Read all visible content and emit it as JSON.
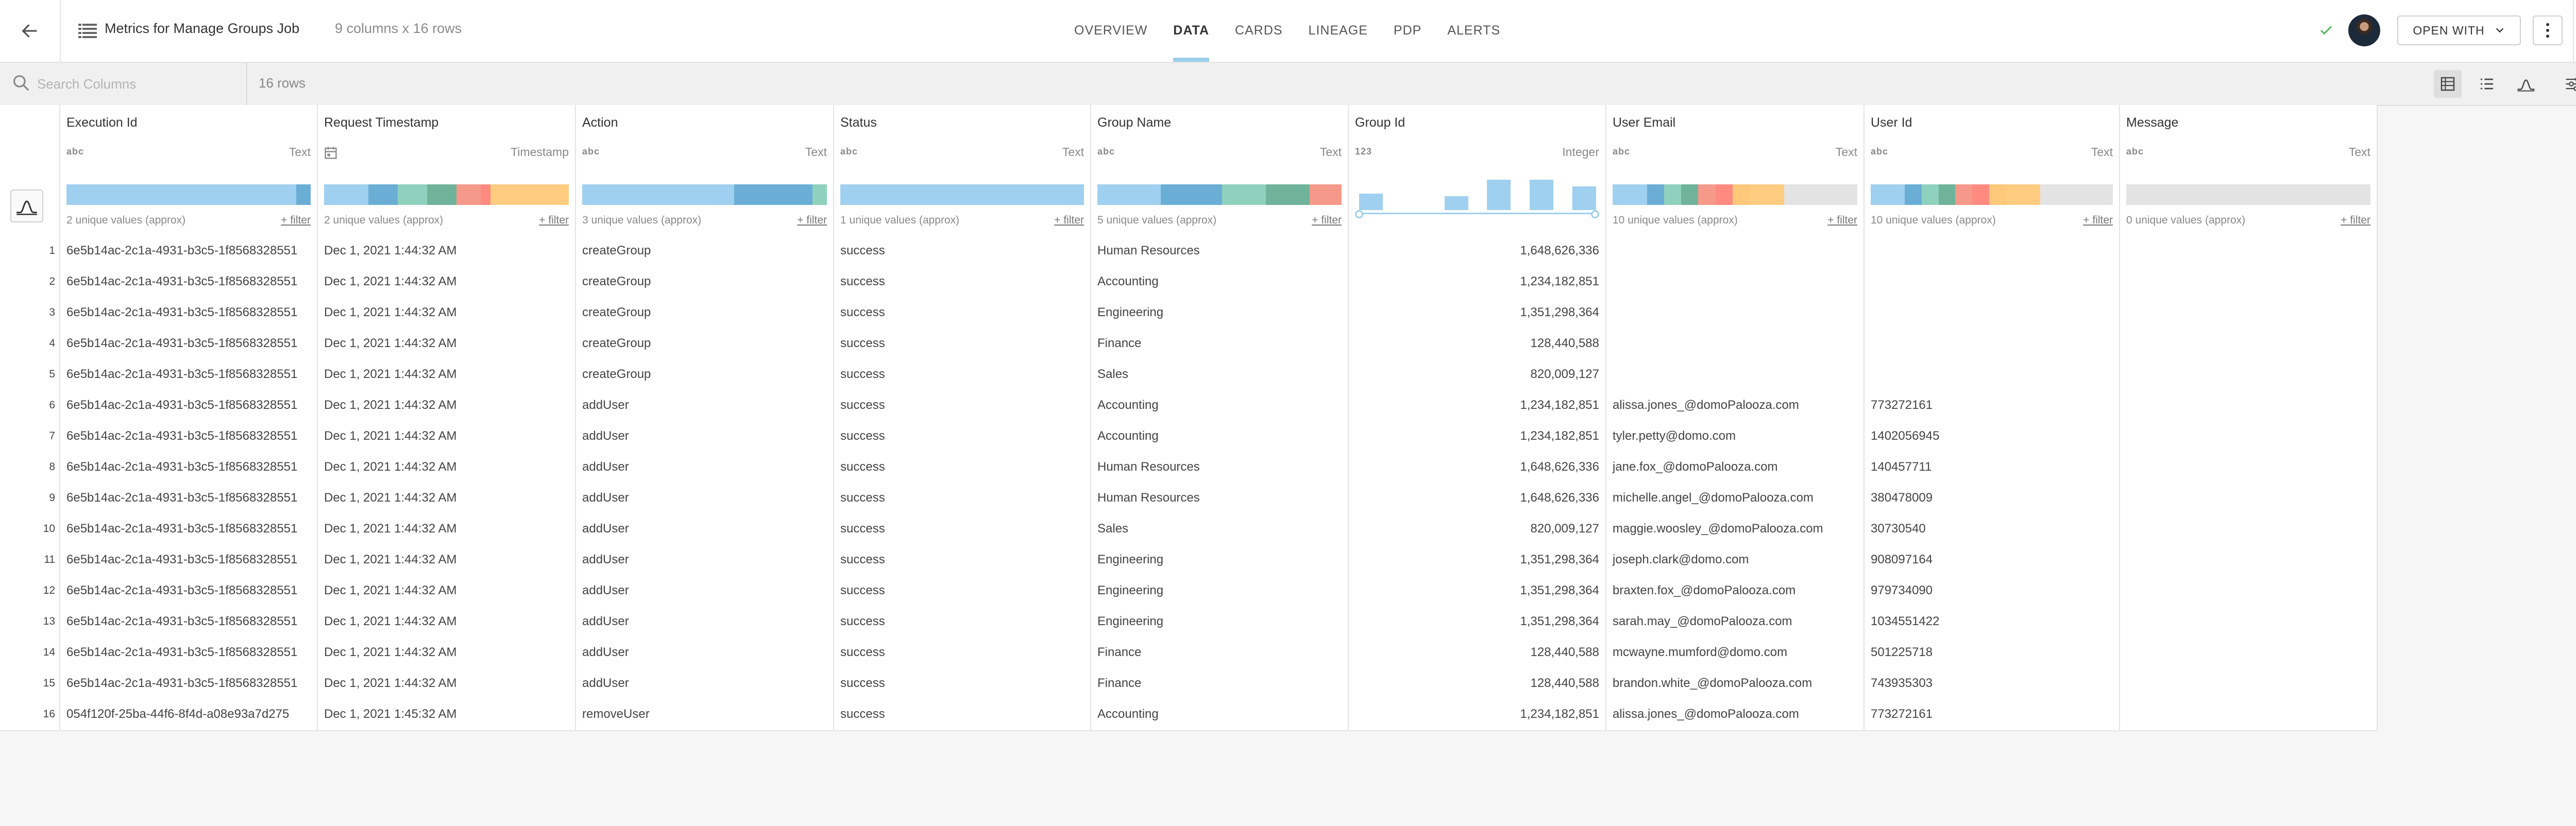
{
  "header": {
    "title": "Metrics for Manage Groups Job",
    "dims": "9 columns x 16 rows",
    "tabs": [
      "OVERVIEW",
      "DATA",
      "CARDS",
      "LINEAGE",
      "PDP",
      "ALERTS"
    ],
    "active_tab": "DATA",
    "open_with_label": "OPEN WITH",
    "check_color": "#5bb85d"
  },
  "toolbar": {
    "search_placeholder": "Search Columns",
    "row_count": "16 rows",
    "view_icons": [
      "grid-view-icon",
      "list-view-icon",
      "profile-view-icon",
      "column-settings-icon",
      "fullscreen-icon"
    ]
  },
  "columns": [
    {
      "name": "Execution Id",
      "type_icon": "abc",
      "type": "Text",
      "unique": "2 unique values (approx)",
      "filter": "+ filter",
      "dist": [
        [
          "#9fd0ef",
          94
        ],
        [
          "#6aaed6",
          6
        ]
      ]
    },
    {
      "name": "Request Timestamp",
      "type_icon": "calendar",
      "type": "Timestamp",
      "unique": "2 unique values (approx)",
      "filter": "+ filter",
      "dist": [
        [
          "#9fd0ef",
          18
        ],
        [
          "#6aaed6",
          12
        ],
        [
          "#8ed2bd",
          12
        ],
        [
          "#6fb39a",
          12
        ],
        [
          "#f59a8a",
          10
        ],
        [
          "#ff8a80",
          4
        ],
        [
          "#ffcc80",
          32
        ]
      ]
    },
    {
      "name": "Action",
      "type_icon": "abc",
      "type": "Text",
      "unique": "3 unique values (approx)",
      "filter": "+ filter",
      "dist": [
        [
          "#9fd0ef",
          62
        ],
        [
          "#6aaed6",
          32
        ],
        [
          "#8ed2bd",
          6
        ]
      ]
    },
    {
      "name": "Status",
      "type_icon": "abc",
      "type": "Text",
      "unique": "1 unique values (approx)",
      "filter": "+ filter",
      "dist": [
        [
          "#9fd0ef",
          100
        ]
      ]
    },
    {
      "name": "Group Name",
      "type_icon": "abc",
      "type": "Text",
      "unique": "5 unique values (approx)",
      "filter": "+ filter",
      "dist": [
        [
          "#9fd0ef",
          26
        ],
        [
          "#6aaed6",
          25
        ],
        [
          "#8ed2bd",
          18
        ],
        [
          "#6fb39a",
          18
        ],
        [
          "#f59a8a",
          13
        ]
      ]
    },
    {
      "name": "Group Id",
      "type_icon": "123",
      "type": "Integer",
      "unique": "",
      "filter": "",
      "hist": [
        0.42,
        0,
        0.36,
        0.78,
        0.78,
        0.6
      ]
    },
    {
      "name": "User Email",
      "type_icon": "abc",
      "type": "Text",
      "unique": "10 unique values (approx)",
      "filter": "+ filter",
      "dist": [
        [
          "#9fd0ef",
          14
        ],
        [
          "#6aaed6",
          7
        ],
        [
          "#8ed2bd",
          7
        ],
        [
          "#6fb39a",
          7
        ],
        [
          "#f59a8a",
          7
        ],
        [
          "#ff8a80",
          7
        ],
        [
          "#ffc87a",
          7
        ],
        [
          "#ffcc80",
          14
        ],
        [
          "#e3e3e3",
          30
        ]
      ]
    },
    {
      "name": "User Id",
      "type_icon": "abc",
      "type": "Text",
      "unique": "10 unique values (approx)",
      "filter": "+ filter",
      "dist": [
        [
          "#9fd0ef",
          14
        ],
        [
          "#6aaed6",
          7
        ],
        [
          "#8ed2bd",
          7
        ],
        [
          "#6fb39a",
          7
        ],
        [
          "#f59a8a",
          7
        ],
        [
          "#ff8a80",
          7
        ],
        [
          "#ffc87a",
          7
        ],
        [
          "#ffcc80",
          14
        ],
        [
          "#e3e3e3",
          30
        ]
      ]
    },
    {
      "name": "Message",
      "type_icon": "abc",
      "type": "Text",
      "unique": "0 unique values (approx)",
      "filter": "+ filter",
      "dist": [
        [
          "#e3e3e3",
          100
        ]
      ]
    }
  ],
  "rows": [
    [
      "6e5b14ac-2c1a-4931-b3c5-1f8568328551",
      "Dec 1, 2021 1:44:32 AM",
      "createGroup",
      "success",
      "Human Resources",
      "1,648,626,336",
      "",
      "",
      ""
    ],
    [
      "6e5b14ac-2c1a-4931-b3c5-1f8568328551",
      "Dec 1, 2021 1:44:32 AM",
      "createGroup",
      "success",
      "Accounting",
      "1,234,182,851",
      "",
      "",
      ""
    ],
    [
      "6e5b14ac-2c1a-4931-b3c5-1f8568328551",
      "Dec 1, 2021 1:44:32 AM",
      "createGroup",
      "success",
      "Engineering",
      "1,351,298,364",
      "",
      "",
      ""
    ],
    [
      "6e5b14ac-2c1a-4931-b3c5-1f8568328551",
      "Dec 1, 2021 1:44:32 AM",
      "createGroup",
      "success",
      "Finance",
      "128,440,588",
      "",
      "",
      ""
    ],
    [
      "6e5b14ac-2c1a-4931-b3c5-1f8568328551",
      "Dec 1, 2021 1:44:32 AM",
      "createGroup",
      "success",
      "Sales",
      "820,009,127",
      "",
      "",
      ""
    ],
    [
      "6e5b14ac-2c1a-4931-b3c5-1f8568328551",
      "Dec 1, 2021 1:44:32 AM",
      "addUser",
      "success",
      "Accounting",
      "1,234,182,851",
      "alissa.jones_@domoPalooza.com",
      "773272161",
      ""
    ],
    [
      "6e5b14ac-2c1a-4931-b3c5-1f8568328551",
      "Dec 1, 2021 1:44:32 AM",
      "addUser",
      "success",
      "Accounting",
      "1,234,182,851",
      "tyler.petty@domo.com",
      "1402056945",
      ""
    ],
    [
      "6e5b14ac-2c1a-4931-b3c5-1f8568328551",
      "Dec 1, 2021 1:44:32 AM",
      "addUser",
      "success",
      "Human Resources",
      "1,648,626,336",
      "jane.fox_@domoPalooza.com",
      "140457711",
      ""
    ],
    [
      "6e5b14ac-2c1a-4931-b3c5-1f8568328551",
      "Dec 1, 2021 1:44:32 AM",
      "addUser",
      "success",
      "Human Resources",
      "1,648,626,336",
      "michelle.angel_@domoPalooza.com",
      "380478009",
      ""
    ],
    [
      "6e5b14ac-2c1a-4931-b3c5-1f8568328551",
      "Dec 1, 2021 1:44:32 AM",
      "addUser",
      "success",
      "Sales",
      "820,009,127",
      "maggie.woosley_@domoPalooza.com",
      "30730540",
      ""
    ],
    [
      "6e5b14ac-2c1a-4931-b3c5-1f8568328551",
      "Dec 1, 2021 1:44:32 AM",
      "addUser",
      "success",
      "Engineering",
      "1,351,298,364",
      "joseph.clark@domo.com",
      "908097164",
      ""
    ],
    [
      "6e5b14ac-2c1a-4931-b3c5-1f8568328551",
      "Dec 1, 2021 1:44:32 AM",
      "addUser",
      "success",
      "Engineering",
      "1,351,298,364",
      "braxten.fox_@domoPalooza.com",
      "979734090",
      ""
    ],
    [
      "6e5b14ac-2c1a-4931-b3c5-1f8568328551",
      "Dec 1, 2021 1:44:32 AM",
      "addUser",
      "success",
      "Engineering",
      "1,351,298,364",
      "sarah.may_@domoPalooza.com",
      "1034551422",
      ""
    ],
    [
      "6e5b14ac-2c1a-4931-b3c5-1f8568328551",
      "Dec 1, 2021 1:44:32 AM",
      "addUser",
      "success",
      "Finance",
      "128,440,588",
      "mcwayne.mumford@domo.com",
      "501225718",
      ""
    ],
    [
      "6e5b14ac-2c1a-4931-b3c5-1f8568328551",
      "Dec 1, 2021 1:44:32 AM",
      "addUser",
      "success",
      "Finance",
      "128,440,588",
      "brandon.white_@domoPalooza.com",
      "743935303",
      ""
    ],
    [
      "054f120f-25ba-44f6-8f4d-a08e93a7d275",
      "Dec 1, 2021 1:45:32 AM",
      "removeUser",
      "success",
      "Accounting",
      "1,234,182,851",
      "alissa.jones_@domoPalooza.com",
      "773272161",
      ""
    ]
  ]
}
